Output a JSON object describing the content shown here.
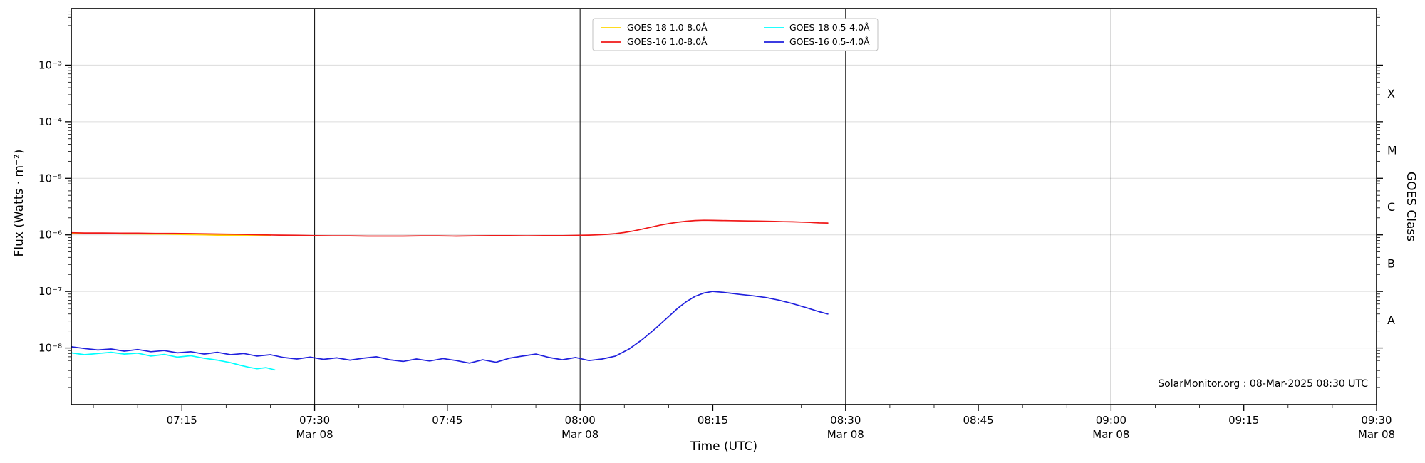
{
  "chart_data": {
    "type": "line",
    "title": "",
    "xlabel": "Time (UTC)",
    "ylabel": "Flux (Watts · m⁻²)",
    "y2label": "GOES Class",
    "annotation": "SolarMonitor.org : 08-Mar-2025 08:30 UTC",
    "grid": "horizontal-decades",
    "legend_position": "top-center",
    "x_axis": {
      "unit": "minutes after 00:00 UTC, Mar 08 2025",
      "range": [
        422.5,
        570
      ],
      "minor_tick_step_minutes": 5,
      "major_ticks": [
        {
          "t": 435,
          "label": "07:15"
        },
        {
          "t": 450,
          "label": "07:30",
          "sublabel": "Mar 08"
        },
        {
          "t": 465,
          "label": "07:45"
        },
        {
          "t": 480,
          "label": "08:00",
          "sublabel": "Mar 08"
        },
        {
          "t": 495,
          "label": "08:15"
        },
        {
          "t": 510,
          "label": "08:30",
          "sublabel": "Mar 08"
        },
        {
          "t": 525,
          "label": "08:45"
        },
        {
          "t": 540,
          "label": "09:00",
          "sublabel": "Mar 08"
        },
        {
          "t": 555,
          "label": "09:15"
        },
        {
          "t": 570,
          "label": "09:30",
          "sublabel": "Mar 08"
        }
      ],
      "day_lines": [
        450,
        480,
        510,
        540
      ]
    },
    "y_axis": {
      "scale": "log",
      "range": [
        1e-09,
        0.01
      ],
      "tick_exponents": [
        -3,
        -4,
        -5,
        -6,
        -7,
        -8
      ],
      "gridline_exponents": [
        -3,
        -4,
        -5,
        -6,
        -7,
        -8
      ],
      "gridline_color": "#dcdcdc"
    },
    "goes_classes": [
      {
        "label": "X",
        "log_flux": -3.5
      },
      {
        "label": "M",
        "log_flux": -4.5
      },
      {
        "label": "C",
        "log_flux": -5.5
      },
      {
        "label": "B",
        "log_flux": -6.5
      },
      {
        "label": "A",
        "log_flux": -7.5
      }
    ],
    "legend": {
      "entries": [
        "GOES-18 1.0-8.0Å",
        "GOES-16 1.0-8.0Å",
        "GOES-18 0.5-4.0Å",
        "GOES-16 0.5-4.0Å"
      ]
    },
    "series": [
      {
        "id": "goes18-long",
        "name": "GOES-18 1.0-8.0Å",
        "color": "#ffd700",
        "x": [
          422.5,
          424,
          425.5,
          427,
          428.5,
          430,
          431.5,
          433,
          434.5,
          436,
          437.5,
          439,
          440.5,
          442,
          443.5,
          445
        ],
        "y": [
          1.06e-06,
          1.06e-06,
          1.05e-06,
          1.05e-06,
          1.04e-06,
          1.04e-06,
          1.03e-06,
          1.03e-06,
          1.02e-06,
          1.01e-06,
          1e-06,
          9.9e-07,
          9.9e-07,
          9.8e-07,
          9.7e-07,
          9.7e-07
        ]
      },
      {
        "id": "goes16-long",
        "name": "GOES-16 1.0-8.0Å",
        "color": "#f01818",
        "x": [
          422.5,
          424,
          426,
          428,
          430,
          432,
          434,
          436,
          438,
          440,
          442,
          444,
          446,
          448,
          450,
          452,
          454,
          456,
          458,
          460,
          462,
          464,
          466,
          468,
          470,
          472,
          474,
          476,
          478,
          480,
          481,
          482,
          483,
          484,
          485,
          486,
          487,
          488,
          489,
          490,
          491,
          492,
          493,
          494,
          495,
          496,
          497,
          498,
          499,
          500,
          501,
          502,
          503,
          504,
          505,
          506,
          507,
          508
        ],
        "y": [
          1.09e-06,
          1.08e-06,
          1.08e-06,
          1.07e-06,
          1.07e-06,
          1.06e-06,
          1.06e-06,
          1.05e-06,
          1.04e-06,
          1.03e-06,
          1.02e-06,
          1e-06,
          9.9e-07,
          9.8e-07,
          9.7e-07,
          9.6e-07,
          9.6e-07,
          9.5e-07,
          9.5e-07,
          9.5e-07,
          9.6e-07,
          9.6e-07,
          9.5e-07,
          9.6e-07,
          9.7e-07,
          9.7e-07,
          9.6e-07,
          9.7e-07,
          9.7e-07,
          9.8e-07,
          9.9e-07,
          1e-06,
          1.02e-06,
          1.05e-06,
          1.1e-06,
          1.17e-06,
          1.26e-06,
          1.37e-06,
          1.48e-06,
          1.58e-06,
          1.67e-06,
          1.74e-06,
          1.79e-06,
          1.81e-06,
          1.8e-06,
          1.79e-06,
          1.78e-06,
          1.77e-06,
          1.76e-06,
          1.75e-06,
          1.74e-06,
          1.73e-06,
          1.71e-06,
          1.7e-06,
          1.68e-06,
          1.66e-06,
          1.63e-06,
          1.62e-06
        ]
      },
      {
        "id": "goes18-short",
        "name": "GOES-18 0.5-4.0Å",
        "color": "#00ffff",
        "x": [
          422.5,
          424,
          425.5,
          427,
          428.5,
          430,
          431.5,
          433,
          434.5,
          436,
          437.5,
          439,
          440.5,
          441.5,
          442.5,
          443.5,
          444.5,
          445.5
        ],
        "y": [
          8.2e-09,
          7.6e-09,
          8e-09,
          8.4e-09,
          7.8e-09,
          8.1e-09,
          7.2e-09,
          7.7e-09,
          6.9e-09,
          7.3e-09,
          6.6e-09,
          6.1e-09,
          5.5e-09,
          5e-09,
          4.6e-09,
          4.3e-09,
          4.5e-09,
          4.1e-09
        ]
      },
      {
        "id": "goes16-short",
        "name": "GOES-16 0.5-4.0Å",
        "color": "#2020dd",
        "x": [
          422.5,
          424,
          425.5,
          427,
          428.5,
          430,
          431.5,
          433,
          434.5,
          436,
          437.5,
          439,
          440.5,
          442,
          443.5,
          445,
          446.5,
          448,
          449.5,
          451,
          452.5,
          454,
          455.5,
          457,
          458.5,
          460,
          461.5,
          463,
          464.5,
          466,
          467.5,
          469,
          470.5,
          472,
          473.5,
          475,
          476.5,
          478,
          479.5,
          481,
          482.5,
          484,
          485.5,
          487,
          488.5,
          490,
          491,
          492,
          493,
          494,
          495,
          496,
          497,
          498,
          499.5,
          501,
          502.5,
          504,
          505.5,
          507,
          508
        ],
        "y": [
          1.05e-08,
          9.8e-09,
          9.2e-09,
          9.6e-09,
          8.8e-09,
          9.4e-09,
          8.6e-09,
          9e-09,
          8.2e-09,
          8.6e-09,
          7.8e-09,
          8.4e-09,
          7.6e-09,
          8e-09,
          7.2e-09,
          7.6e-09,
          6.8e-09,
          6.4e-09,
          6.9e-09,
          6.3e-09,
          6.7e-09,
          6.1e-09,
          6.6e-09,
          7e-09,
          6.2e-09,
          5.8e-09,
          6.4e-09,
          5.9e-09,
          6.5e-09,
          6e-09,
          5.4e-09,
          6.2e-09,
          5.6e-09,
          6.6e-09,
          7.2e-09,
          7.8e-09,
          6.8e-09,
          6.2e-09,
          6.8e-09,
          6e-09,
          6.4e-09,
          7.2e-09,
          9.5e-09,
          1.4e-08,
          2.2e-08,
          3.6e-08,
          5e-08,
          6.6e-08,
          8.2e-08,
          9.4e-08,
          1e-07,
          9.7e-08,
          9.3e-08,
          8.9e-08,
          8.4e-08,
          7.8e-08,
          7e-08,
          6.1e-08,
          5.2e-08,
          4.4e-08,
          4e-08
        ]
      }
    ]
  }
}
